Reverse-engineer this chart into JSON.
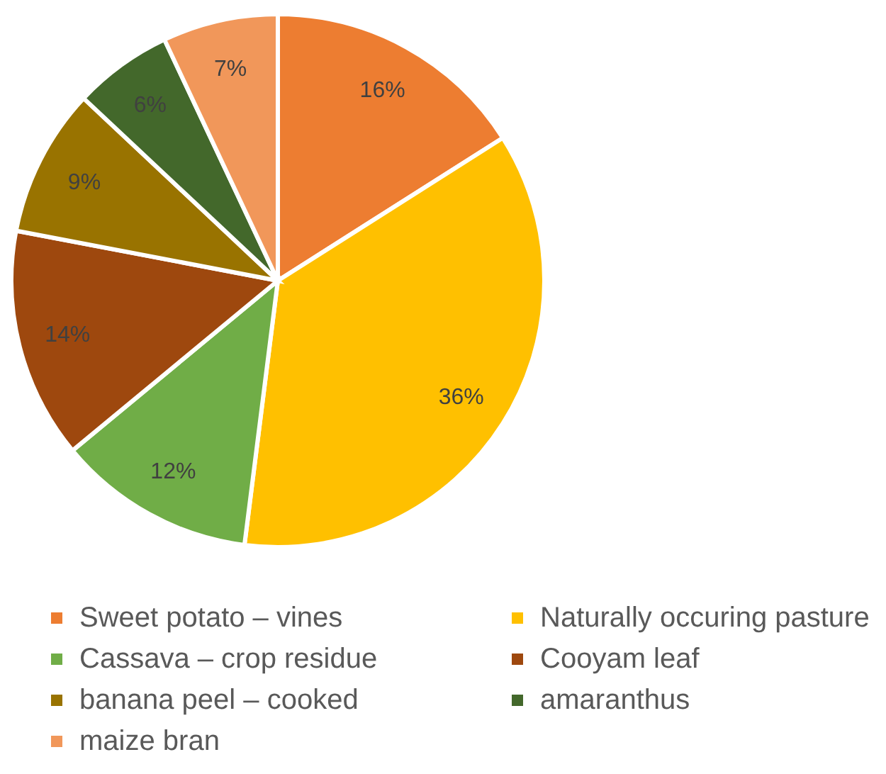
{
  "chart_data": {
    "type": "pie",
    "categories": [
      "Sweet potato – vines",
      "Naturally occuring pasture",
      "Cassava – crop residue",
      "Cooyam leaf",
      "banana peel – cooked",
      "amaranthus",
      "maize bran"
    ],
    "values": [
      16,
      36,
      12,
      14,
      9,
      6,
      7
    ],
    "colors": [
      "#ed7d31",
      "#ffc000",
      "#70ad47",
      "#9e480e",
      "#997300",
      "#43682b",
      "#f1975a"
    ],
    "value_labels": [
      "16%",
      "36%",
      "12%",
      "14%",
      "9%",
      "6%",
      "7%"
    ],
    "legend": "bottom"
  }
}
